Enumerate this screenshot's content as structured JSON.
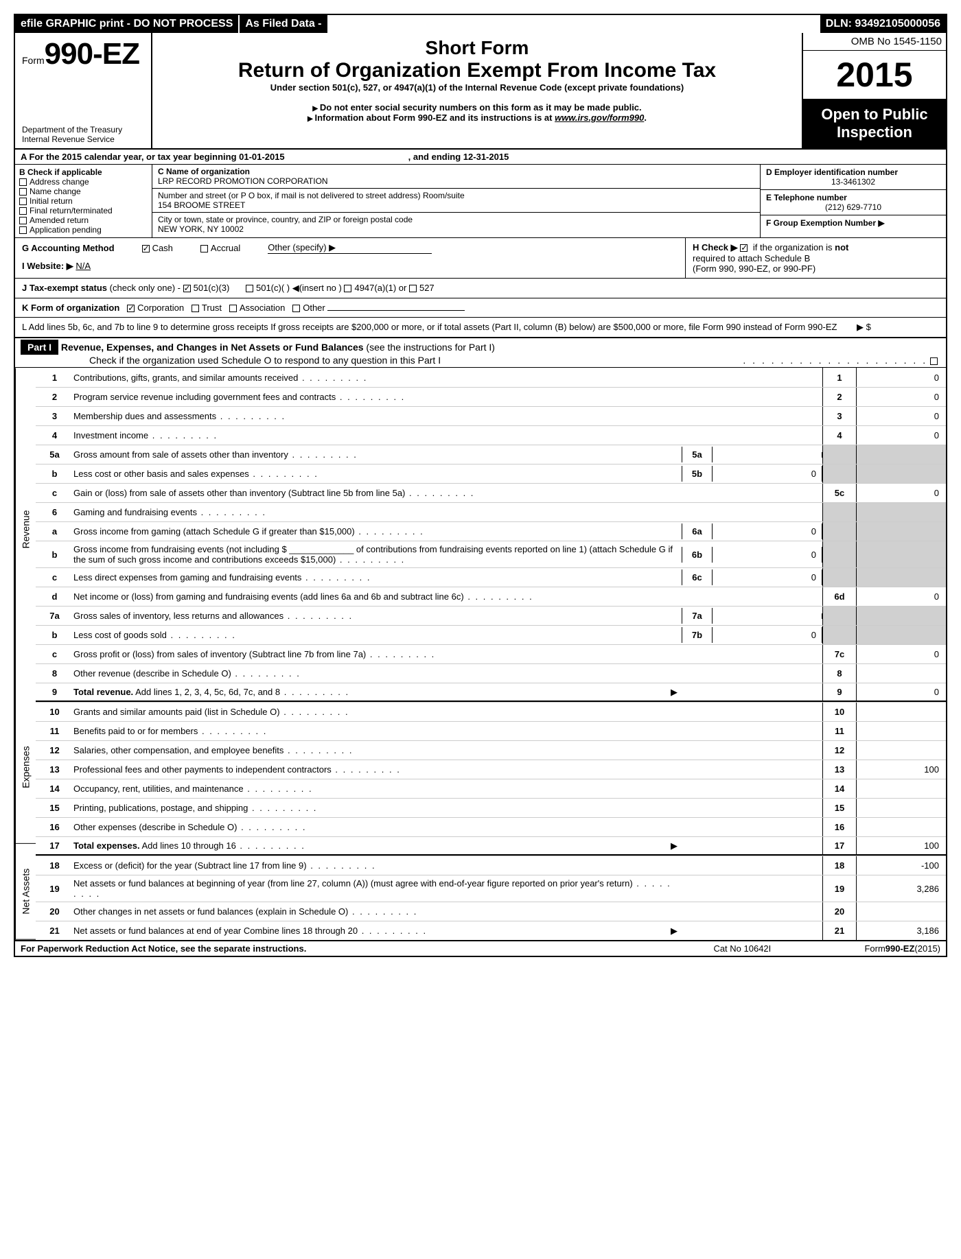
{
  "topbar": {
    "efile": "efile GRAPHIC print - DO NOT PROCESS",
    "asfiled": "As Filed Data -",
    "dln": "DLN: 93492105000056"
  },
  "header": {
    "form_prefix": "Form",
    "form_num": "990-EZ",
    "dept1": "Department of the Treasury",
    "dept2": "Internal Revenue Service",
    "short_form": "Short Form",
    "title": "Return of Organization Exempt From Income Tax",
    "subtitle": "Under section 501(c), 527, or 4947(a)(1) of the Internal Revenue Code (except private foundations)",
    "warn1": "Do not enter social security numbers on this form as it may be made public.",
    "warn2": "Information about Form 990-EZ and its instructions is at ",
    "warn2_link": "www.irs.gov/form990",
    "omb": "OMB No 1545-1150",
    "year": "2015",
    "open1": "Open to Public",
    "open2": "Inspection"
  },
  "rowA": {
    "label": "A  For the 2015 calendar year, or tax year beginning 01-01-2015",
    "ending": ", and ending 12-31-2015"
  },
  "B": {
    "label": "B  Check if applicable",
    "addr": "Address change",
    "name": "Name change",
    "initial": "Initial return",
    "final": "Final return/terminated",
    "amended": "Amended return",
    "app": "Application pending"
  },
  "C": {
    "label": "C Name of organization",
    "org": "LRP RECORD PROMOTION CORPORATION",
    "street_label": "Number and street (or P  O  box, if mail is not delivered to street address) Room/suite",
    "street": "154 BROOME STREET",
    "city_label": "City or town, state or province, country, and ZIP or foreign postal code",
    "city": "NEW YORK, NY  10002"
  },
  "D": {
    "label": "D Employer identification number",
    "value": "13-3461302"
  },
  "E": {
    "label": "E Telephone number",
    "value": "(212) 629-7710"
  },
  "F": {
    "label": "F Group Exemption Number ▶"
  },
  "G": {
    "label": "G Accounting Method",
    "cash": "Cash",
    "accrual": "Accrual",
    "other": "Other (specify) ▶"
  },
  "H": {
    "label": "H  Check ▶",
    "text1": "if the organization is ",
    "not": "not",
    "text2": "required to attach Schedule B",
    "text3": "(Form 990, 990-EZ, or 990-PF)"
  },
  "I": {
    "label": "I Website: ▶",
    "value": "N/A"
  },
  "J": {
    "label": "J Tax-exempt status",
    "text": "(check only one) -",
    "c3": "501(c)(3)",
    "c": "501(c)(  ) ◀(insert no )",
    "c4947": "4947(a)(1) or",
    "c527": "527"
  },
  "K": {
    "label": "K Form of organization",
    "corp": "Corporation",
    "trust": "Trust",
    "assoc": "Association",
    "other": "Other"
  },
  "L": {
    "text": "L Add lines 5b, 6c, and 7b to line 9 to determine gross receipts  If gross receipts are $200,000 or more, or if total assets (Part II, column (B) below) are $500,000 or more, file Form 990 instead of Form 990-EZ",
    "arrow": "▶ $"
  },
  "partI": {
    "title": "Part I",
    "heading": "Revenue, Expenses, and Changes in Net Assets or Fund Balances",
    "instr": "(see the instructions for Part I)",
    "check": "Check if the organization used Schedule O to respond to any question in this Part I"
  },
  "lines": [
    {
      "n": "1",
      "label": "Contributions, gifts, grants, and similar amounts received",
      "box": "1",
      "val": "0"
    },
    {
      "n": "2",
      "label": "Program service revenue including government fees and contracts",
      "box": "2",
      "val": "0"
    },
    {
      "n": "3",
      "label": "Membership dues and assessments",
      "box": "3",
      "val": "0"
    },
    {
      "n": "4",
      "label": "Investment income",
      "box": "4",
      "val": "0"
    },
    {
      "n": "5a",
      "label": "Gross amount from sale of assets other than inventory",
      "mid": "5a",
      "midval": "",
      "shade": true
    },
    {
      "n": "b",
      "label": "Less  cost or other basis and sales expenses",
      "mid": "5b",
      "midval": "0",
      "shade": true
    },
    {
      "n": "c",
      "label": "Gain or (loss) from sale of assets other than inventory (Subtract line 5b from line 5a)",
      "box": "5c",
      "val": "0"
    },
    {
      "n": "6",
      "label": "Gaming and fundraising events",
      "shade": true
    },
    {
      "n": "a",
      "label": "Gross income from gaming (attach Schedule G if greater than $15,000)",
      "mid": "6a",
      "midval": "0",
      "shade": true
    },
    {
      "n": "b",
      "label": "Gross income from fundraising events (not including $ _____________ of contributions from fundraising events reported on line 1) (attach Schedule G if the sum of such gross income and contributions exceeds $15,000)",
      "mid": "6b",
      "midval": "0",
      "shade": true
    },
    {
      "n": "c",
      "label": "Less  direct expenses from gaming and fundraising events",
      "mid": "6c",
      "midval": "0",
      "shade": true
    },
    {
      "n": "d",
      "label": "Net income or (loss) from gaming and fundraising events (add lines 6a and 6b and subtract line 6c)",
      "box": "6d",
      "val": "0"
    },
    {
      "n": "7a",
      "label": "Gross sales of inventory, less returns and allowances",
      "mid": "7a",
      "midval": "",
      "shade": true
    },
    {
      "n": "b",
      "label": "Less  cost of goods sold",
      "mid": "7b",
      "midval": "0",
      "shade": true
    },
    {
      "n": "c",
      "label": "Gross profit or (loss) from sales of inventory (Subtract line 7b from line 7a)",
      "box": "7c",
      "val": "0"
    },
    {
      "n": "8",
      "label": "Other revenue (describe in Schedule O)",
      "box": "8",
      "val": ""
    },
    {
      "n": "9",
      "label": "Total revenue. Add lines 1, 2, 3, 4, 5c, 6d, 7c, and 8",
      "box": "9",
      "val": "0",
      "bold": true,
      "arrow": true
    },
    {
      "n": "10",
      "label": "Grants and similar amounts paid (list in Schedule O)",
      "box": "10",
      "val": ""
    },
    {
      "n": "11",
      "label": "Benefits paid to or for members",
      "box": "11",
      "val": ""
    },
    {
      "n": "12",
      "label": "Salaries, other compensation, and employee benefits",
      "box": "12",
      "val": ""
    },
    {
      "n": "13",
      "label": "Professional fees and other payments to independent contractors",
      "box": "13",
      "val": "100"
    },
    {
      "n": "14",
      "label": "Occupancy, rent, utilities, and maintenance",
      "box": "14",
      "val": ""
    },
    {
      "n": "15",
      "label": "Printing, publications, postage, and shipping",
      "box": "15",
      "val": ""
    },
    {
      "n": "16",
      "label": "Other expenses (describe in Schedule O)",
      "box": "16",
      "val": ""
    },
    {
      "n": "17",
      "label": "Total expenses. Add lines 10 through 16",
      "box": "17",
      "val": "100",
      "bold": true,
      "arrow": true
    },
    {
      "n": "18",
      "label": "Excess or (deficit) for the year (Subtract line 17 from line 9)",
      "box": "18",
      "val": "-100"
    },
    {
      "n": "19",
      "label": "Net assets or fund balances at beginning of year (from line 27, column (A)) (must agree with end-of-year figure reported on prior year's return)",
      "box": "19",
      "val": "3,286"
    },
    {
      "n": "20",
      "label": "Other changes in net assets or fund balances (explain in Schedule O)",
      "box": "20",
      "val": ""
    },
    {
      "n": "21",
      "label": "Net assets or fund balances at end of year  Combine lines 18 through 20",
      "box": "21",
      "val": "3,186",
      "arrow": true
    }
  ],
  "side_labels": {
    "rev": "Revenue",
    "exp": "Expenses",
    "na": "Net Assets"
  },
  "footer": {
    "left": "For Paperwork Reduction Act Notice, see the separate instructions.",
    "mid": "Cat No  10642I",
    "right_prefix": "Form",
    "right_form": "990-EZ",
    "right_year": "(2015)"
  }
}
